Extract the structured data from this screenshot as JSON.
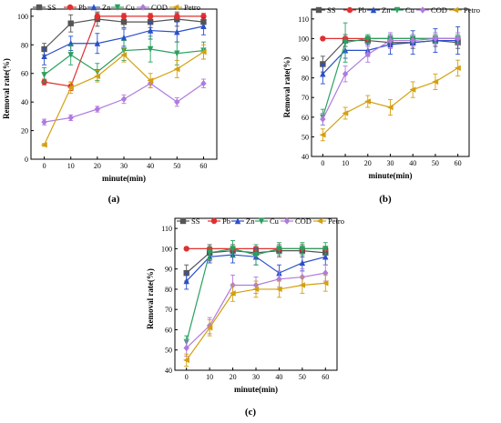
{
  "captions": [
    "(a)",
    "(b)",
    "(c)"
  ],
  "chart_data": [
    {
      "type": "line",
      "x": [
        0,
        10,
        20,
        30,
        40,
        50,
        60
      ],
      "xlabel": "minute(min)",
      "ylabel": "Removal rate(%)",
      "xlim": [
        -5,
        65
      ],
      "ylim": [
        0,
        105
      ],
      "xticks": [
        0,
        10,
        20,
        30,
        40,
        50,
        60
      ],
      "yticks": [
        0,
        20,
        40,
        60,
        80,
        100
      ],
      "legend_position": "top-left",
      "series": [
        {
          "name": "SS",
          "color": "#555555",
          "marker": "square",
          "values": [
            77,
            95,
            98,
            96,
            96,
            98,
            96
          ],
          "errors": [
            4,
            6,
            5,
            4,
            4,
            5,
            4
          ]
        },
        {
          "name": "Pb",
          "color": "#e03030",
          "marker": "circle",
          "values": [
            54,
            51,
            100,
            100,
            100,
            100,
            100
          ],
          "errors": [
            2,
            3,
            2,
            2,
            2,
            2,
            2
          ]
        },
        {
          "name": "Zn",
          "color": "#2b4fc9",
          "marker": "triangle",
          "values": [
            72,
            81,
            81,
            85,
            90,
            89,
            93
          ],
          "errors": [
            6,
            5,
            7,
            6,
            6,
            7,
            6
          ]
        },
        {
          "name": "Cu",
          "color": "#2aa060",
          "marker": "triangle-down",
          "values": [
            59,
            73,
            61,
            76,
            77,
            74,
            76
          ],
          "errors": [
            5,
            7,
            6,
            7,
            9,
            8,
            6
          ]
        },
        {
          "name": "COD",
          "color": "#b07adf",
          "marker": "diamond",
          "values": [
            26,
            29,
            35,
            42,
            53,
            40,
            53
          ],
          "errors": [
            2,
            2,
            2,
            3,
            3,
            3,
            3
          ]
        },
        {
          "name": "Petro",
          "color": "#d4a010",
          "marker": "triangle-left",
          "values": [
            10,
            50,
            58,
            73,
            55,
            63,
            75
          ],
          "errors": [
            1,
            4,
            4,
            5,
            5,
            6,
            5
          ]
        }
      ]
    },
    {
      "type": "line",
      "x": [
        0,
        10,
        20,
        30,
        40,
        50,
        60
      ],
      "xlabel": "minute(min)",
      "ylabel": "Removal rate(%)",
      "xlim": [
        -5,
        65
      ],
      "ylim": [
        40,
        115
      ],
      "xticks": [
        0,
        10,
        20,
        30,
        40,
        50,
        60
      ],
      "yticks": [
        40,
        50,
        60,
        70,
        80,
        90,
        100,
        110
      ],
      "legend_position": "top",
      "series": [
        {
          "name": "SS",
          "color": "#555555",
          "marker": "square",
          "values": [
            87,
            99,
            99,
            98,
            98,
            99,
            98
          ],
          "errors": [
            4,
            3,
            2,
            3,
            3,
            3,
            3
          ]
        },
        {
          "name": "Pb",
          "color": "#e03030",
          "marker": "circle",
          "values": [
            100,
            100,
            100,
            100,
            100,
            100,
            100
          ],
          "errors": [
            0,
            0,
            0,
            0,
            0,
            0,
            0
          ]
        },
        {
          "name": "Zn",
          "color": "#2b4fc9",
          "marker": "triangle",
          "values": [
            82,
            94,
            94,
            97,
            98,
            99,
            99
          ],
          "errors": [
            5,
            4,
            3,
            5,
            6,
            6,
            7
          ]
        },
        {
          "name": "Cu",
          "color": "#2aa060",
          "marker": "triangle-down",
          "values": [
            60,
            98,
            100,
            100,
            100,
            100,
            100
          ],
          "errors": [
            4,
            10,
            2,
            2,
            2,
            2,
            2
          ]
        },
        {
          "name": "COD",
          "color": "#b07adf",
          "marker": "diamond",
          "values": [
            59,
            82,
            92,
            99,
            99,
            100,
            100
          ],
          "errors": [
            3,
            4,
            4,
            4,
            3,
            3,
            3
          ]
        },
        {
          "name": "Petro",
          "color": "#d4a010",
          "marker": "triangle-left",
          "values": [
            51,
            62,
            68,
            65,
            74,
            78,
            85
          ],
          "errors": [
            3,
            3,
            3,
            4,
            4,
            4,
            4
          ]
        }
      ]
    },
    {
      "type": "line",
      "x": [
        0,
        10,
        20,
        30,
        40,
        50,
        60
      ],
      "xlabel": "minute(min)",
      "ylabel": "Removal rate(%)",
      "xlim": [
        -5,
        65
      ],
      "ylim": [
        40,
        115
      ],
      "xticks": [
        0,
        10,
        20,
        30,
        40,
        50,
        60
      ],
      "yticks": [
        40,
        50,
        60,
        70,
        80,
        90,
        100,
        110
      ],
      "legend_position": "top",
      "series": [
        {
          "name": "SS",
          "color": "#555555",
          "marker": "square",
          "values": [
            88,
            98,
            99,
            98,
            99,
            99,
            98
          ],
          "errors": [
            4,
            4,
            3,
            3,
            3,
            3,
            3
          ]
        },
        {
          "name": "Pb",
          "color": "#e03030",
          "marker": "circle",
          "values": [
            100,
            100,
            100,
            100,
            100,
            100,
            100
          ],
          "errors": [
            0,
            0,
            0,
            0,
            0,
            0,
            0
          ]
        },
        {
          "name": "Zn",
          "color": "#2b4fc9",
          "marker": "triangle",
          "values": [
            84,
            96,
            97,
            96,
            88,
            93,
            96
          ],
          "errors": [
            4,
            3,
            4,
            4,
            4,
            4,
            4
          ]
        },
        {
          "name": "Cu",
          "color": "#2aa060",
          "marker": "triangle-down",
          "values": [
            54,
            98,
            100,
            97,
            100,
            100,
            100
          ],
          "errors": [
            3,
            3,
            4,
            5,
            3,
            3,
            3
          ]
        },
        {
          "name": "COD",
          "color": "#b07adf",
          "marker": "diamond",
          "values": [
            51,
            62,
            82,
            82,
            85,
            86,
            88
          ],
          "errors": [
            4,
            4,
            5,
            4,
            4,
            4,
            4
          ]
        },
        {
          "name": "Petro",
          "color": "#d4a010",
          "marker": "triangle-left",
          "values": [
            45,
            61,
            78,
            80,
            80,
            82,
            83
          ],
          "errors": [
            3,
            4,
            4,
            4,
            4,
            4,
            4
          ]
        }
      ]
    }
  ]
}
